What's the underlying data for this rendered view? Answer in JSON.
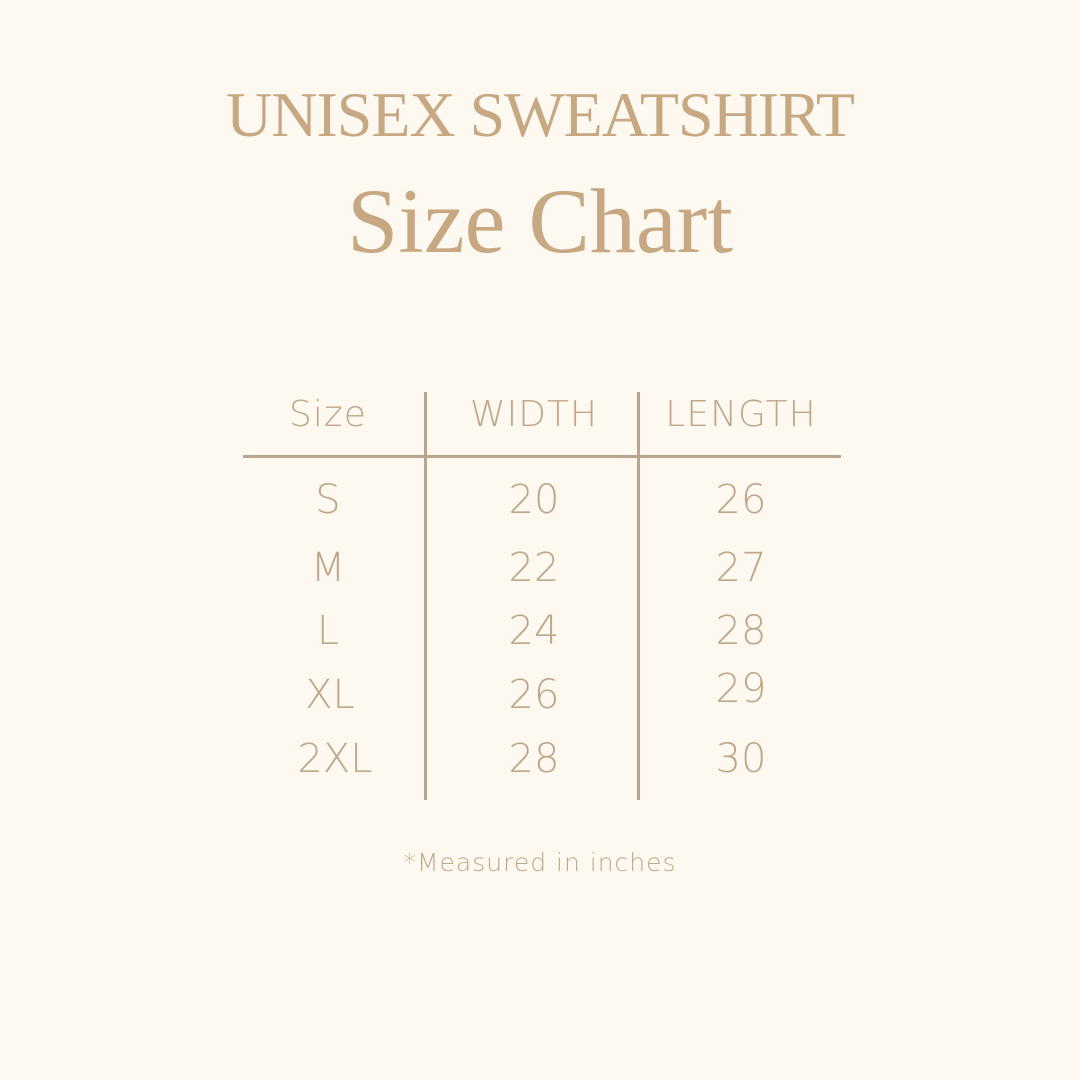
{
  "title": {
    "line1": "UNISEX SWEATSHIRT",
    "line2": "Size Chart"
  },
  "table": {
    "headers": [
      "Size",
      "WIDTH",
      "LENGTH"
    ],
    "rows": [
      [
        "S",
        "20",
        "26"
      ],
      [
        "M",
        "22",
        "27"
      ],
      [
        "L",
        "24",
        "28"
      ],
      [
        "XL",
        "26",
        "29"
      ],
      [
        "2XL",
        "28",
        "30"
      ]
    ]
  },
  "footnote": "*Measured in inches",
  "colors": {
    "background": "#fdf8f0",
    "text": "#bfa78a",
    "title": "#c6a882",
    "rule": "#b9a48e"
  }
}
